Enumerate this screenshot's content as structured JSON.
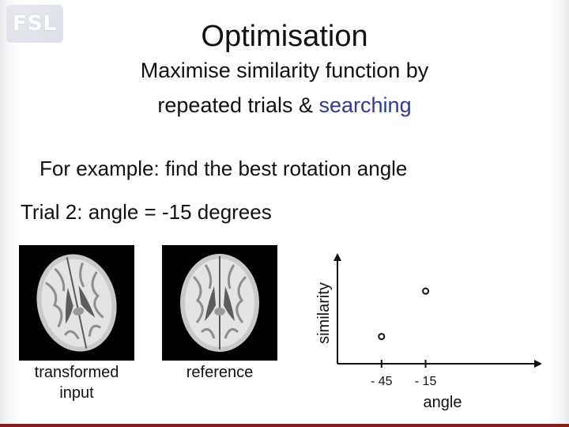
{
  "slide": {
    "logo_text": "FSL",
    "title": "Optimisation",
    "subtitle_line1": "Maximise similarity function by",
    "subtitle_line2_prefix": "repeated trials & ",
    "subtitle_line2_highlight": "searching",
    "example_text": "For example: find the best rotation angle",
    "trial_text": "Trial 2: angle = -15 degrees",
    "colors": {
      "highlight": "#2f3a8f",
      "bottom_rule": "#8b1a1a"
    }
  },
  "images": [
    {
      "caption": "transformed\ninput",
      "icon": "brain-axial-slice-icon"
    },
    {
      "caption": "reference",
      "icon": "brain-axial-slice-icon"
    }
  ],
  "chart_data": {
    "type": "scatter",
    "xlabel": "angle",
    "ylabel": "similarity",
    "x_tick_labels": [
      "- 45",
      "- 15"
    ],
    "x_ticks": [
      -45,
      -15
    ],
    "points": [
      {
        "x": -45,
        "y": 0.3
      },
      {
        "x": -15,
        "y": 0.8
      }
    ],
    "xlim": [
      -75,
      60
    ],
    "ylim": [
      0,
      1.15
    ],
    "grid": false,
    "legend": "none"
  }
}
